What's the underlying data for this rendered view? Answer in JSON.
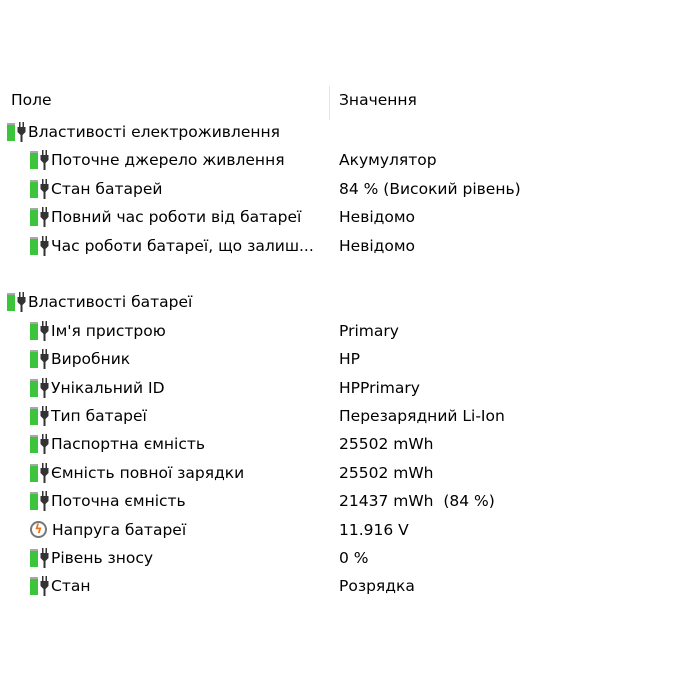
{
  "header": {
    "field": "Поле",
    "value": "Значення"
  },
  "groups": [
    {
      "title": "Властивості електроживлення",
      "icon": "battery-plug-icon",
      "items": [
        {
          "field": "Поточне джерело живлення",
          "value": "Акумулятор",
          "icon": "battery-plug-icon"
        },
        {
          "field": "Стан батарей",
          "value": "84 % (Високий рівень)",
          "icon": "battery-plug-icon"
        },
        {
          "field": "Повний час роботи від батареї",
          "value": "Невідомо",
          "icon": "battery-plug-icon"
        },
        {
          "field": "Час роботи батареї, що залиш...",
          "value": "Невідомо",
          "icon": "battery-plug-icon"
        }
      ]
    },
    {
      "title": "Властивості батареї",
      "icon": "battery-plug-icon",
      "items": [
        {
          "field": "Ім'я пристрою",
          "value": "Primary",
          "icon": "battery-plug-icon"
        },
        {
          "field": "Виробник",
          "value": "HP",
          "icon": "battery-plug-icon"
        },
        {
          "field": "Унікальний ID",
          "value": "HPPrimary",
          "icon": "battery-plug-icon"
        },
        {
          "field": "Тип батареї",
          "value": "Перезарядний Li-Ion",
          "icon": "battery-plug-icon"
        },
        {
          "field": "Паспортна ємність",
          "value": "25502 mWh",
          "icon": "battery-plug-icon"
        },
        {
          "field": "Ємність повної зарядки",
          "value": "25502 mWh",
          "icon": "battery-plug-icon"
        },
        {
          "field": "Поточна ємність",
          "value": "21437 mWh  (84 %)",
          "icon": "battery-plug-icon"
        },
        {
          "field": "Напруга батареї",
          "value": "11.916 V",
          "icon": "voltage-icon"
        },
        {
          "field": "Рівень зносу",
          "value": "0 %",
          "icon": "battery-plug-icon"
        },
        {
          "field": "Стан",
          "value": "Розрядка",
          "icon": "battery-plug-icon"
        }
      ]
    }
  ]
}
